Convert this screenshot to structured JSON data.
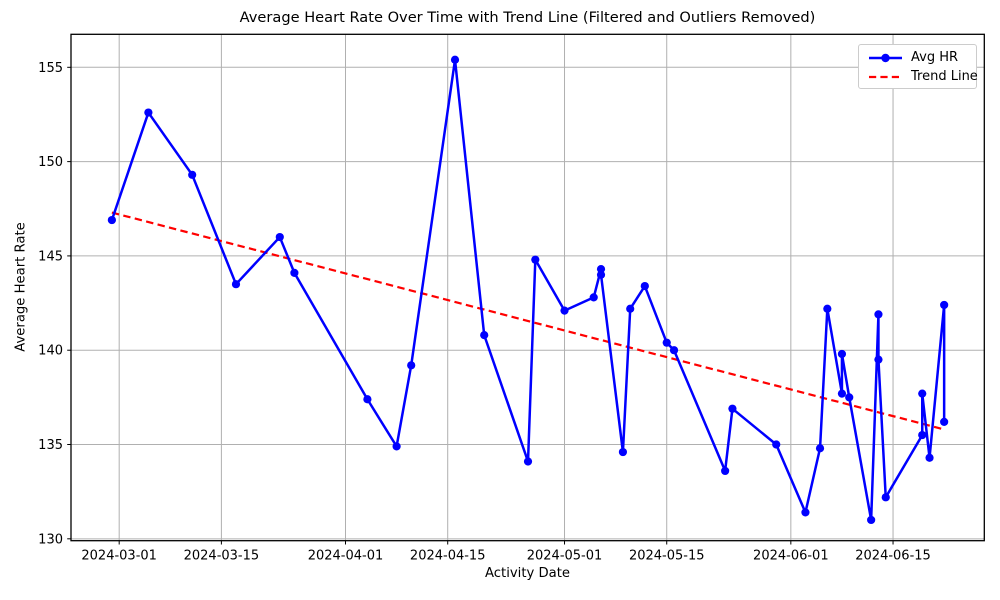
{
  "figure": {
    "background": "#ffffff",
    "grid_color": "#b0b0b0",
    "spine_color": "#000000",
    "text_color": "#000000"
  },
  "chart_data": {
    "type": "line",
    "title": "Average Heart Rate Over Time with Trend Line (Filtered and Outliers Removed)",
    "xlabel": "Activity Date",
    "ylabel": "Average Heart Rate",
    "grid": true,
    "legend": {
      "position": "upper right",
      "entries": [
        "Avg HR",
        "Trend Line"
      ]
    },
    "x_ticks": [
      "2024-03-01",
      "2024-03-15",
      "2024-04-01",
      "2024-04-15",
      "2024-05-01",
      "2024-05-15",
      "2024-06-01",
      "2024-06-15"
    ],
    "y_ticks": [
      130,
      135,
      140,
      145,
      150,
      155
    ],
    "ylim": [
      129.9,
      156.75
    ],
    "xlim_days_from_first_point": [
      -5.6,
      119.5
    ],
    "series": [
      {
        "name": "Avg HR",
        "color": "#0000ff",
        "style": "solid",
        "marker": "circle",
        "points": [
          {
            "date": "2024-02-29",
            "value": 146.9
          },
          {
            "date": "2024-03-05",
            "value": 152.6
          },
          {
            "date": "2024-03-11",
            "value": 149.3
          },
          {
            "date": "2024-03-17",
            "value": 143.5
          },
          {
            "date": "2024-03-23",
            "value": 146.0
          },
          {
            "date": "2024-03-25",
            "value": 144.1
          },
          {
            "date": "2024-04-04",
            "value": 137.4
          },
          {
            "date": "2024-04-08",
            "value": 134.9
          },
          {
            "date": "2024-04-10",
            "value": 139.2
          },
          {
            "date": "2024-04-16",
            "value": 155.4
          },
          {
            "date": "2024-04-20",
            "value": 140.8
          },
          {
            "date": "2024-04-26",
            "value": 134.1
          },
          {
            "date": "2024-04-27",
            "value": 144.8
          },
          {
            "date": "2024-05-01",
            "value": 142.1
          },
          {
            "date": "2024-05-05",
            "value": 142.8
          },
          {
            "date": "2024-05-06",
            "value": 144.3
          },
          {
            "date": "2024-05-06",
            "value": 144.0
          },
          {
            "date": "2024-05-09",
            "value": 134.6
          },
          {
            "date": "2024-05-10",
            "value": 142.2
          },
          {
            "date": "2024-05-12",
            "value": 143.4
          },
          {
            "date": "2024-05-15",
            "value": 140.4
          },
          {
            "date": "2024-05-16",
            "value": 140.0
          },
          {
            "date": "2024-05-23",
            "value": 133.6
          },
          {
            "date": "2024-05-24",
            "value": 136.9
          },
          {
            "date": "2024-05-30",
            "value": 135.0
          },
          {
            "date": "2024-06-03",
            "value": 131.4
          },
          {
            "date": "2024-06-05",
            "value": 134.8
          },
          {
            "date": "2024-06-06",
            "value": 142.2
          },
          {
            "date": "2024-06-08",
            "value": 137.7
          },
          {
            "date": "2024-06-08",
            "value": 139.8
          },
          {
            "date": "2024-06-09",
            "value": 137.5
          },
          {
            "date": "2024-06-12",
            "value": 131.0
          },
          {
            "date": "2024-06-13",
            "value": 141.9
          },
          {
            "date": "2024-06-13",
            "value": 139.5
          },
          {
            "date": "2024-06-14",
            "value": 132.2
          },
          {
            "date": "2024-06-19",
            "value": 135.5
          },
          {
            "date": "2024-06-19",
            "value": 137.7
          },
          {
            "date": "2024-06-20",
            "value": 134.3
          },
          {
            "date": "2024-06-22",
            "value": 142.4
          },
          {
            "date": "2024-06-22",
            "value": 136.2
          }
        ]
      },
      {
        "name": "Trend Line",
        "color": "#ff0000",
        "style": "dashed",
        "marker": "none",
        "points": [
          {
            "date": "2024-02-29",
            "value": 147.3
          },
          {
            "date": "2024-06-22",
            "value": 135.8
          }
        ]
      }
    ]
  }
}
